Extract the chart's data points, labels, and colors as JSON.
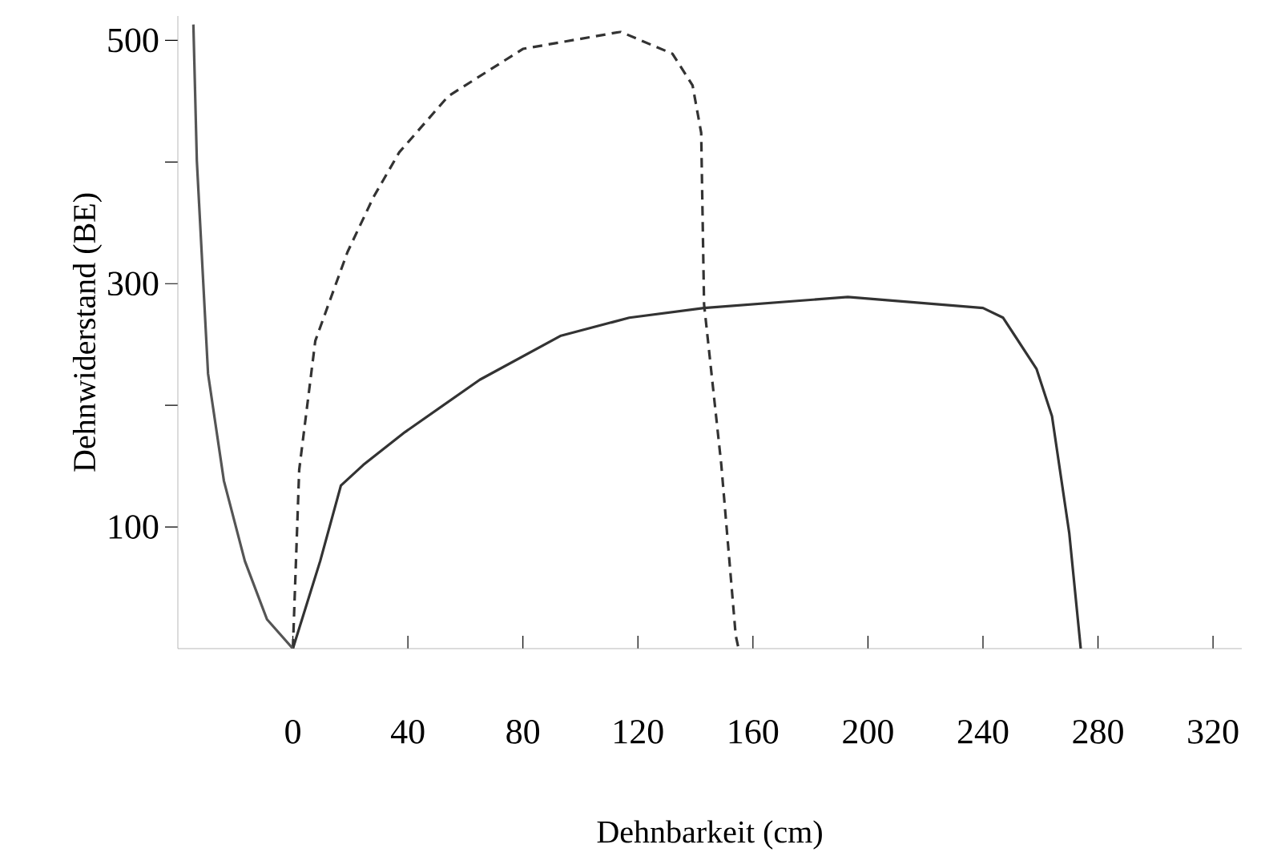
{
  "chart_data": {
    "type": "line",
    "xlabel": "Dehnbarkeit (cm)",
    "ylabel": "Dehnwiderstand (BE)",
    "xlim": [
      -40,
      330
    ],
    "ylim": [
      0,
      520
    ],
    "xticks": [
      0,
      40,
      80,
      120,
      160,
      200,
      240,
      280,
      320
    ],
    "yticks": [
      {
        "value": 100,
        "label": "100"
      },
      {
        "value": 200,
        "label": null
      },
      {
        "value": 300,
        "label": "300"
      },
      {
        "value": 400,
        "label": null
      },
      {
        "value": 500,
        "label": "500"
      }
    ],
    "grid": false,
    "series": [
      {
        "color": "#333333",
        "line_style": "solid",
        "x": [
          0,
          9.5,
          16.7,
          24.5,
          39,
          65,
          93,
          117,
          143,
          193,
          240,
          247,
          258.6,
          264,
          270,
          274
        ],
        "values": [
          0,
          72,
          134,
          151,
          178,
          221,
          257,
          272,
          280,
          289,
          280,
          272,
          230,
          191,
          95,
          0
        ]
      },
      {
        "color": "#333333",
        "line_style": "dashed",
        "x": [
          0,
          2.2,
          7.8,
          13,
          19,
          28,
          37,
          54,
          80,
          114,
          132,
          139,
          142,
          143,
          149,
          154,
          155
        ],
        "values": [
          0,
          147,
          253,
          287,
          326,
          371,
          408,
          454,
          493,
          507,
          489,
          463,
          424,
          283,
          151,
          11,
          0
        ]
      },
      {
        "color": "#555555",
        "line_style": "solid",
        "x": [
          -34.6,
          -33.4,
          -29.5,
          -24,
          -16.7,
          -9,
          0
        ],
        "values": [
          513,
          401,
          226,
          138,
          72,
          24,
          0
        ]
      }
    ]
  }
}
